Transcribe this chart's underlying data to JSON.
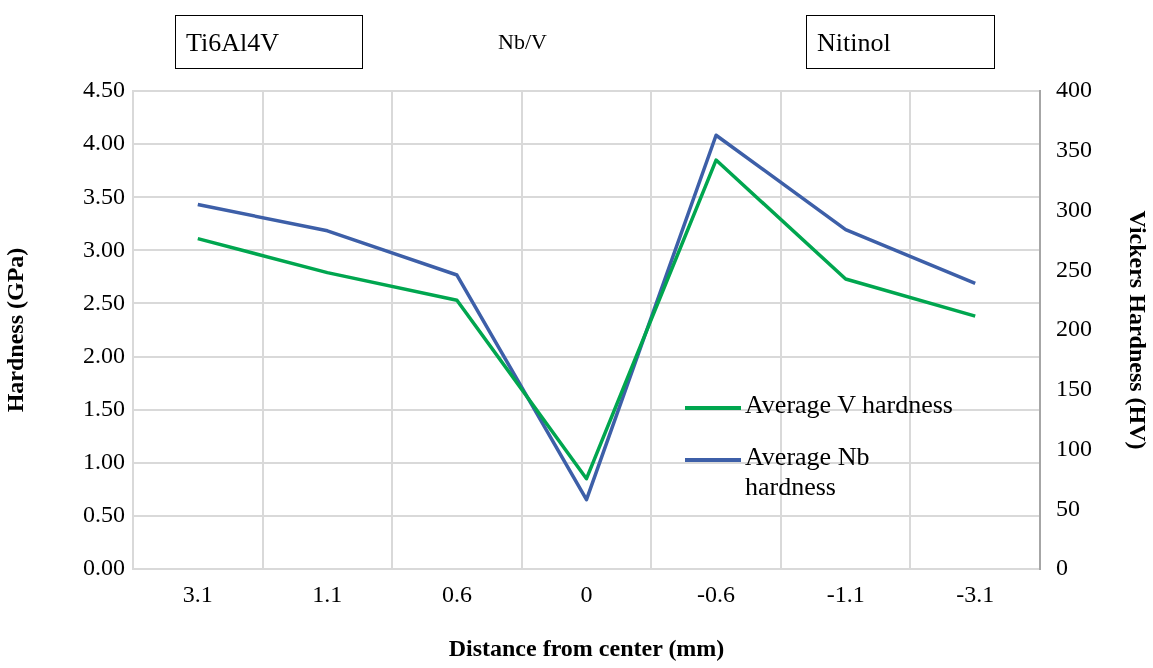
{
  "chart_data": {
    "type": "line",
    "xlabel": "Distance from center (mm)",
    "ylabel": "Hardness (GPa)",
    "y2label": "Vickers Hardness (HV)",
    "categories": [
      "3.1",
      "1.1",
      "0.6",
      "0",
      "-0.6",
      "-1.1",
      "-3.1"
    ],
    "series": [
      {
        "name": "Average V hardness",
        "color": "#00a64f",
        "values": [
          3.11,
          2.79,
          2.53,
          0.85,
          3.85,
          2.73,
          2.38
        ]
      },
      {
        "name": "Average Nb hardness",
        "color": "#3d5fa8",
        "axis": "y2",
        "values": [
          305,
          283,
          246,
          58,
          363,
          284,
          239
        ]
      }
    ],
    "ylim": [
      0,
      4.5
    ],
    "yticks": [
      {
        "value": 0,
        "label": "0.00"
      },
      {
        "value": 0.5,
        "label": "0.50"
      },
      {
        "value": 1,
        "label": "1.00"
      },
      {
        "value": 1.5,
        "label": "1.50"
      },
      {
        "value": 2,
        "label": "2.00"
      },
      {
        "value": 2.5,
        "label": "2.50"
      },
      {
        "value": 3,
        "label": "3.00"
      },
      {
        "value": 3.5,
        "label": "3.50"
      },
      {
        "value": 4,
        "label": "4.00"
      },
      {
        "value": 4.5,
        "label": "4.50"
      }
    ],
    "y2lim": [
      0,
      400
    ],
    "y2ticks": [
      0,
      50,
      100,
      150,
      200,
      250,
      300,
      350,
      400
    ],
    "annotations": [
      "Ti6Al4V",
      "Nb/V",
      "Nitinol"
    ],
    "grid": true,
    "legend": "right",
    "marker": "none",
    "line_style": "solid"
  }
}
